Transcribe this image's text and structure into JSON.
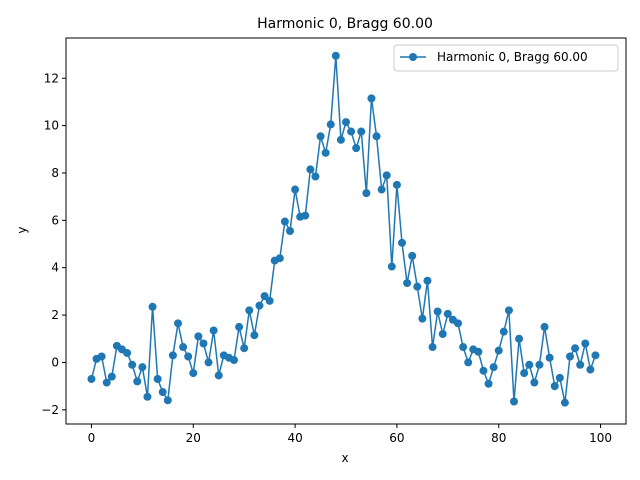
{
  "chart_data": {
    "type": "line",
    "title": "Harmonic 0, Bragg 60.00",
    "xlabel": "x",
    "ylabel": "y",
    "xlim": [
      -5,
      105
    ],
    "ylim": [
      -2.6,
      13.7
    ],
    "xticks": [
      0,
      20,
      40,
      60,
      80,
      100
    ],
    "yticks": [
      -2,
      0,
      2,
      4,
      6,
      8,
      10,
      12
    ],
    "grid": false,
    "legend_position": "top-right",
    "color": "#1f77b4",
    "series": [
      {
        "name": "Harmonic 0, Bragg 60.00",
        "marker": "circle",
        "x": [
          0,
          1,
          2,
          3,
          4,
          5,
          6,
          7,
          8,
          9,
          10,
          11,
          12,
          13,
          14,
          15,
          16,
          17,
          18,
          19,
          20,
          21,
          22,
          23,
          24,
          25,
          26,
          27,
          28,
          29,
          30,
          31,
          32,
          33,
          34,
          35,
          36,
          37,
          38,
          39,
          40,
          41,
          42,
          43,
          44,
          45,
          46,
          47,
          48,
          49,
          50,
          51,
          52,
          53,
          54,
          55,
          56,
          57,
          58,
          59,
          60,
          61,
          62,
          63,
          64,
          65,
          66,
          67,
          68,
          69,
          70,
          71,
          72,
          73,
          74,
          75,
          76,
          77,
          78,
          79,
          80,
          81,
          82,
          83,
          84,
          85,
          86,
          87,
          88,
          89,
          90,
          91,
          92,
          93,
          94,
          95,
          96,
          97,
          98,
          99
        ],
        "y": [
          -0.7,
          0.15,
          0.25,
          -0.85,
          -0.6,
          0.7,
          0.55,
          0.4,
          -0.1,
          -0.8,
          -0.2,
          -1.45,
          2.35,
          -0.7,
          -1.25,
          -1.6,
          0.3,
          1.65,
          0.65,
          0.25,
          -0.45,
          1.1,
          0.8,
          0.0,
          1.35,
          -0.55,
          0.3,
          0.2,
          0.1,
          1.5,
          0.6,
          2.2,
          1.15,
          2.4,
          2.8,
          2.6,
          4.3,
          4.4,
          5.95,
          5.55,
          7.3,
          6.15,
          6.2,
          8.15,
          7.85,
          9.55,
          8.85,
          10.05,
          12.95,
          9.4,
          10.15,
          9.75,
          9.05,
          9.75,
          7.15,
          11.15,
          9.55,
          7.3,
          7.9,
          4.05,
          7.5,
          5.05,
          3.35,
          4.5,
          3.2,
          1.85,
          3.45,
          0.65,
          2.15,
          1.2,
          2.05,
          1.8,
          1.65,
          0.65,
          0.0,
          0.55,
          0.45,
          -0.35,
          -0.9,
          -0.2,
          0.5,
          1.3,
          2.2,
          -1.65,
          1.0,
          -0.45,
          -0.1,
          -0.85,
          -0.1,
          1.5,
          0.2,
          -1.0,
          -0.65,
          -1.7,
          0.25,
          0.6,
          -0.1,
          0.8,
          -0.3,
          0.3
        ]
      }
    ]
  }
}
